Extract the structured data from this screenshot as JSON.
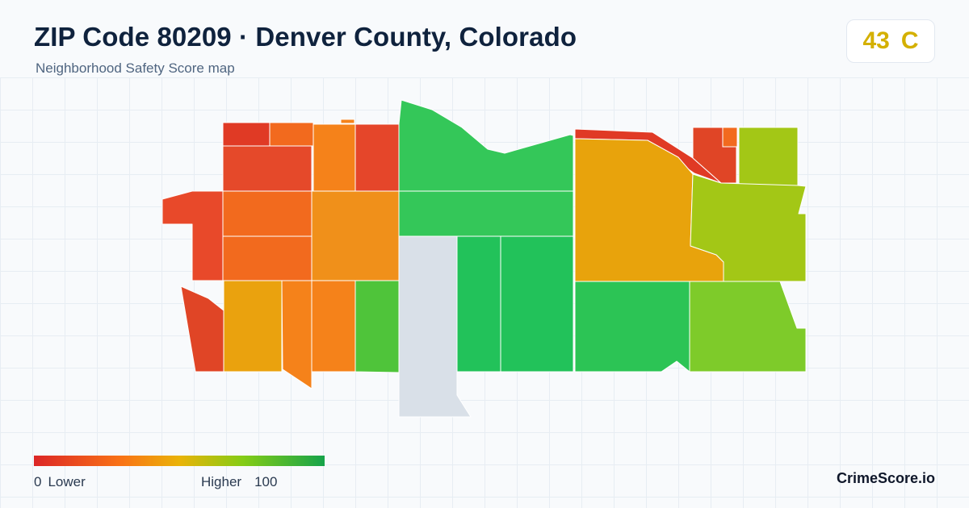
{
  "header": {
    "title": "ZIP Code 80209 · Denver County, Colorado",
    "subtitle": "Neighborhood Safety Score map"
  },
  "score": {
    "value": "43",
    "grade": "C",
    "color": "#d4b000"
  },
  "map": {
    "regions": [
      {
        "id": "r1",
        "color": "#e03a25"
      },
      {
        "id": "r2",
        "color": "#f26a1e"
      },
      {
        "id": "r3",
        "color": "#f5821a"
      },
      {
        "id": "r4",
        "color": "#f5821a"
      },
      {
        "id": "r5",
        "color": "#e5462a"
      },
      {
        "id": "r6",
        "color": "#e5492a"
      },
      {
        "id": "r7",
        "color": "#f26a1e"
      },
      {
        "id": "r8",
        "color": "#f0901a"
      },
      {
        "id": "r9",
        "color": "#e8492a"
      },
      {
        "id": "r10",
        "color": "#f26a1e"
      },
      {
        "id": "r11",
        "color": "#e04526"
      },
      {
        "id": "r12",
        "color": "#eaa20e"
      },
      {
        "id": "r13",
        "color": "#f5821a"
      },
      {
        "id": "r14",
        "color": "#f5821a"
      },
      {
        "id": "r15",
        "color": "#4fc43a"
      },
      {
        "id": "r16",
        "color": "#34c759"
      },
      {
        "id": "r17",
        "color": "#34c759"
      },
      {
        "id": "r18",
        "color": "#d9e0e8"
      },
      {
        "id": "r19",
        "color": "#22c25a"
      },
      {
        "id": "r20",
        "color": "#22c25a"
      },
      {
        "id": "r21",
        "color": "#e03a25"
      },
      {
        "id": "r22",
        "color": "#e8a30c"
      },
      {
        "id": "r23",
        "color": "#e04526"
      },
      {
        "id": "r24",
        "color": "#f26a1e"
      },
      {
        "id": "r25",
        "color": "#a3c716"
      },
      {
        "id": "r26",
        "color": "#a3c716"
      },
      {
        "id": "r27",
        "color": "#2cc455"
      },
      {
        "id": "r28",
        "color": "#7ecb2a"
      }
    ]
  },
  "legend": {
    "low_num": "0",
    "low_label": "Lower",
    "high_label": "Higher",
    "high_num": "100"
  },
  "brand": "CrimeScore.io"
}
